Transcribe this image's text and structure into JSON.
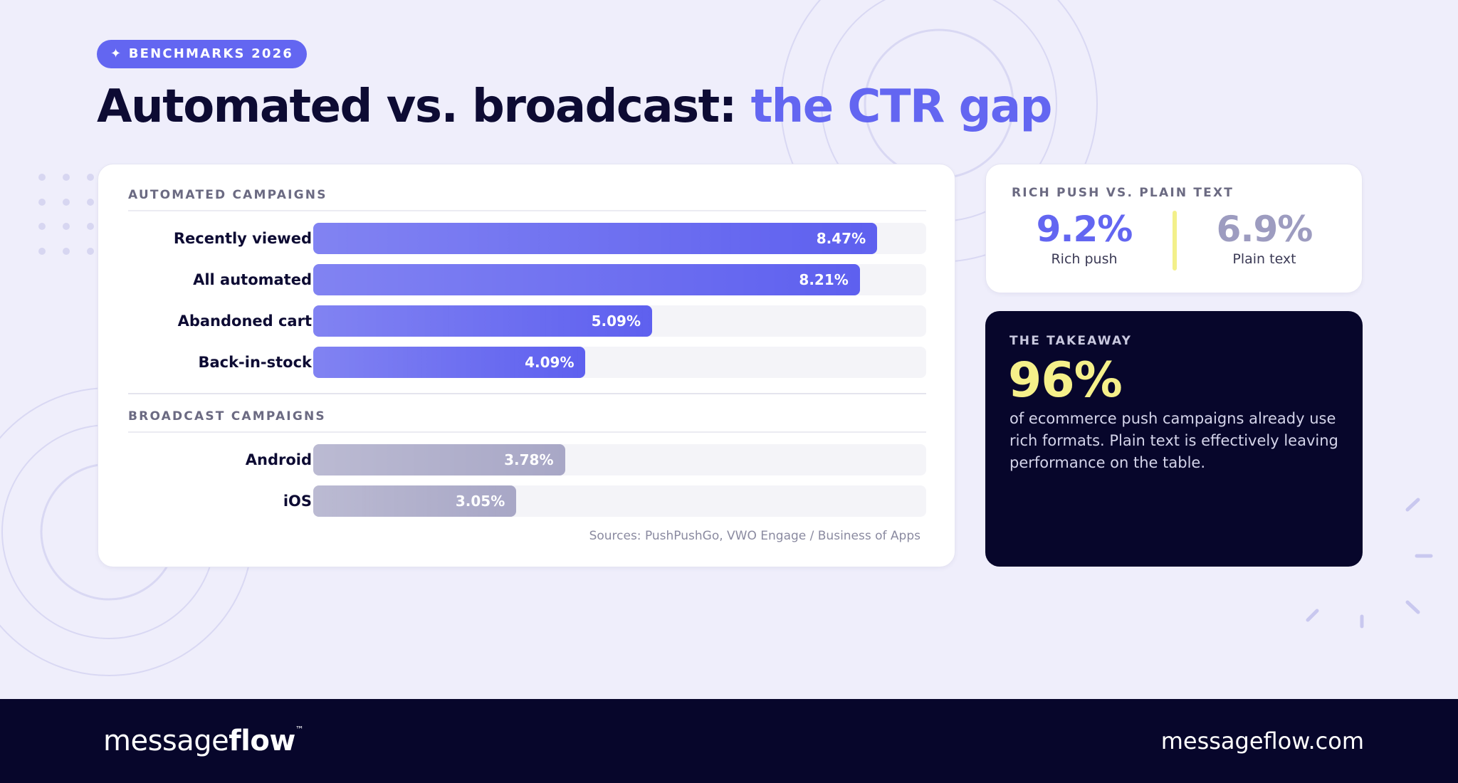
{
  "badge": "✦ BENCHMARKS 2026",
  "title": {
    "main": "Automated vs. broadcast: ",
    "highlight": "the CTR gap"
  },
  "chart_data": {
    "type": "bar",
    "sections": [
      {
        "name": "AUTOMATED CAMPAIGNS",
        "color": "#5e60ef",
        "categories": [
          "Recently viewed",
          "All automated",
          "Abandoned cart",
          "Back-in-stock"
        ],
        "values": [
          8.47,
          8.21,
          5.09,
          4.09
        ],
        "value_labels": [
          "8.47%",
          "8.21%",
          "5.09%",
          "4.09%"
        ]
      },
      {
        "name": "BROADCAST CAMPAIGNS",
        "color": "#a8a7c6",
        "categories": [
          "Android",
          "iOS"
        ],
        "values": [
          3.78,
          3.05
        ],
        "value_labels": [
          "3.78%",
          "3.05%"
        ]
      }
    ],
    "source": "Sources: PushPushGo, VWO Engage / Business of Apps"
  },
  "comparison": {
    "title": "RICH PUSH VS. PLAIN TEXT",
    "items": [
      {
        "value": "9.2%",
        "label": "Rich push"
      },
      {
        "value": "6.9%",
        "label": "Plain text"
      }
    ]
  },
  "takeaway": {
    "title": "THE TAKEAWAY",
    "stat": "96%",
    "text": "of ecommerce push campaigns already use rich formats. Plain text is effectively leaving performance on the table."
  },
  "footer": {
    "logo_regular": "message",
    "logo_bold": "flow",
    "logo_tm": "™",
    "url": "messageflow.com"
  }
}
